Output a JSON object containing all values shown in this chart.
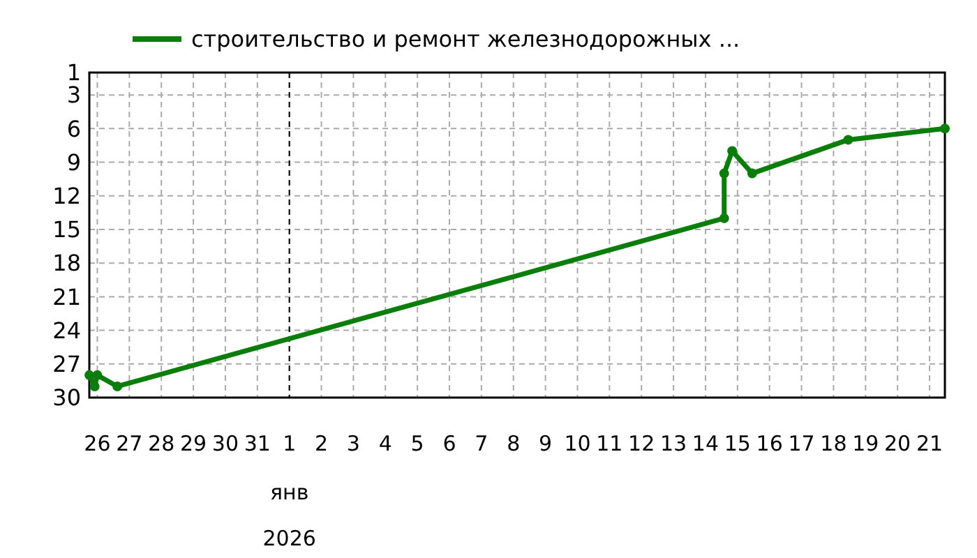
{
  "chart_data": {
    "type": "line",
    "legend": "top",
    "grid": true,
    "marker": "circle",
    "line_style": "solid",
    "x": [
      "2025-12-25T18:00",
      "2025-12-25T22:00",
      "2025-12-26T00:00",
      "2025-12-26T15:00",
      "2026-01-14T14:00",
      "2026-01-14T14:00",
      "2026-01-14T20:00",
      "2026-01-15T11:00",
      "2026-01-18T11:00",
      "2026-01-21T11:30"
    ],
    "series": [
      {
        "name": "строительство и ремонт железнодорожных ...",
        "color": "#0a7d0a",
        "values": [
          28,
          29,
          28,
          29,
          14,
          10,
          8,
          10,
          7,
          6
        ]
      }
    ],
    "ylim": [
      30,
      1
    ],
    "yticks": [
      1,
      3,
      6,
      9,
      12,
      15,
      18,
      21,
      24,
      27,
      30
    ],
    "xlim": [
      "2025-12-25T18:00",
      "2026-01-21T11:30"
    ],
    "xticks": [
      {
        "value": "2025-12-26",
        "label": "26"
      },
      {
        "value": "2025-12-27",
        "label": "27"
      },
      {
        "value": "2025-12-28",
        "label": "28"
      },
      {
        "value": "2025-12-29",
        "label": "29"
      },
      {
        "value": "2025-12-30",
        "label": "30"
      },
      {
        "value": "2025-12-31",
        "label": "31"
      },
      {
        "value": "2026-01-01",
        "label": "1"
      },
      {
        "value": "2026-01-02",
        "label": "2"
      },
      {
        "value": "2026-01-03",
        "label": "3"
      },
      {
        "value": "2026-01-04",
        "label": "4"
      },
      {
        "value": "2026-01-05",
        "label": "5"
      },
      {
        "value": "2026-01-06",
        "label": "6"
      },
      {
        "value": "2026-01-07",
        "label": "7"
      },
      {
        "value": "2026-01-08",
        "label": "8"
      },
      {
        "value": "2026-01-09",
        "label": "9"
      },
      {
        "value": "2026-01-10",
        "label": "10"
      },
      {
        "value": "2026-01-11",
        "label": "11"
      },
      {
        "value": "2026-01-12",
        "label": "12"
      },
      {
        "value": "2026-01-13",
        "label": "13"
      },
      {
        "value": "2026-01-14",
        "label": "14"
      },
      {
        "value": "2026-01-15",
        "label": "15"
      },
      {
        "value": "2026-01-16",
        "label": "16"
      },
      {
        "value": "2026-01-17",
        "label": "17"
      },
      {
        "value": "2026-01-18",
        "label": "18"
      },
      {
        "value": "2026-01-19",
        "label": "19"
      },
      {
        "value": "2026-01-20",
        "label": "20"
      },
      {
        "value": "2026-01-21",
        "label": "21"
      }
    ],
    "ref_lines": [
      {
        "axis": "x",
        "value": "2026-01-01",
        "color": "#000000",
        "line_style": "dashed"
      }
    ],
    "annotations": [
      "янв",
      "2026"
    ]
  }
}
